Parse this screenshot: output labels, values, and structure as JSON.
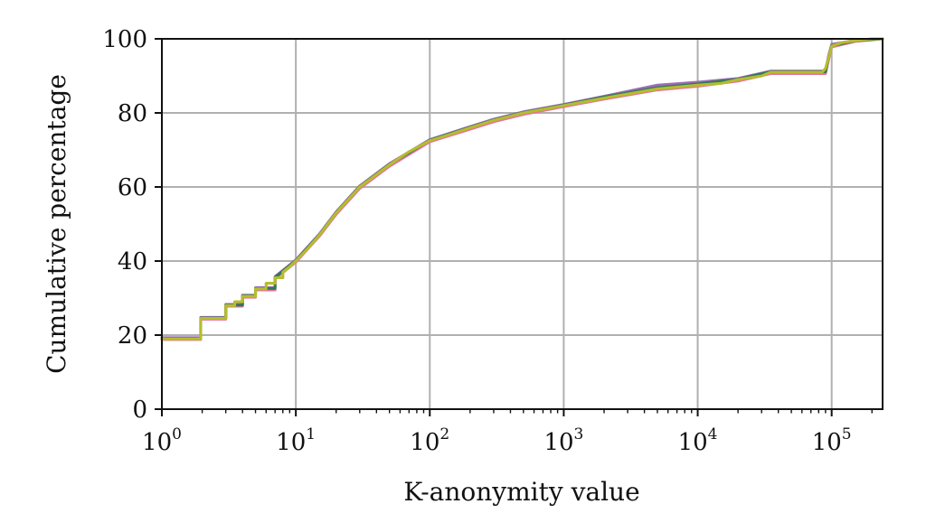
{
  "chart_data": {
    "type": "line",
    "title": "",
    "xlabel": "K-anonymity value",
    "ylabel": "Cumulative percentage",
    "x_scale": "log",
    "xlim": [
      1,
      240000
    ],
    "ylim": [
      0,
      100
    ],
    "grid": true,
    "x_ticks": [
      {
        "value": 1,
        "base": "10",
        "exp": "0"
      },
      {
        "value": 10,
        "base": "10",
        "exp": "1"
      },
      {
        "value": 100,
        "base": "10",
        "exp": "2"
      },
      {
        "value": 1000,
        "base": "10",
        "exp": "3"
      },
      {
        "value": 10000,
        "base": "10",
        "exp": "4"
      },
      {
        "value": 100000,
        "base": "10",
        "exp": "5"
      }
    ],
    "y_ticks": [
      "0",
      "20",
      "40",
      "60",
      "80",
      "100"
    ],
    "series": [
      {
        "color": "#b5bd2d",
        "x": [
          1,
          1.95,
          1.95,
          3,
          3,
          3.5,
          3.5,
          4,
          4,
          5,
          5,
          6,
          6,
          7,
          7,
          8,
          8,
          9,
          10,
          12,
          15,
          20,
          30,
          50,
          70,
          100,
          150,
          200,
          300,
          500,
          1000,
          2000,
          5000,
          10000,
          15000,
          20000,
          30000,
          35000,
          50000,
          85000,
          90000,
          95000,
          100000,
          120000,
          150000,
          200000,
          240000
        ],
        "y": [
          19,
          19,
          24.5,
          24.5,
          28,
          28,
          29,
          29,
          30.5,
          30.5,
          32.5,
          32.5,
          34,
          34,
          35.5,
          35.5,
          37,
          38.5,
          40,
          43,
          47,
          53,
          60,
          66,
          69.5,
          72.5,
          74.5,
          76,
          78,
          80,
          82,
          84,
          86.5,
          87.5,
          88,
          89,
          90,
          91,
          91,
          91,
          92,
          95,
          98,
          99,
          99.5,
          100,
          100
        ]
      },
      {
        "color": "#9c6bb3",
        "x": [
          1,
          1.95,
          1.95,
          3,
          3,
          4,
          4,
          5,
          5,
          7,
          7,
          10,
          15,
          20,
          30,
          50,
          100,
          200,
          300,
          500,
          1000,
          2000,
          5000,
          10000,
          20000,
          35000,
          50000,
          90000,
          95000,
          100000,
          150000,
          240000
        ],
        "y": [
          19.3,
          19.3,
          24.8,
          24.8,
          28.3,
          28.3,
          30.8,
          30.8,
          32.8,
          32.8,
          35.8,
          40.3,
          47.3,
          53.3,
          60.3,
          66.3,
          72.8,
          76.3,
          78.3,
          80.3,
          82.3,
          84.5,
          87.5,
          88.3,
          89.3,
          91.3,
          91.3,
          91.3,
          95.5,
          98.5,
          99.6,
          100
        ]
      },
      {
        "color": "#e6739f",
        "x": [
          1,
          1.95,
          1.95,
          3,
          3,
          4,
          4,
          5,
          5,
          7,
          7,
          10,
          15,
          20,
          30,
          50,
          100,
          200,
          300,
          500,
          1000,
          2000,
          5000,
          10000,
          20000,
          35000,
          50000,
          90000,
          95000,
          100000,
          150000,
          240000
        ],
        "y": [
          18.8,
          18.8,
          24.3,
          24.3,
          27.8,
          27.8,
          30.2,
          30.2,
          32.2,
          32.2,
          35.2,
          39.7,
          46.7,
          52.6,
          59.6,
          65.6,
          72.2,
          75.6,
          77.6,
          79.6,
          81.7,
          83.7,
          86.2,
          87.2,
          88.6,
          90.6,
          90.6,
          90.6,
          94.5,
          97.8,
          99.3,
          100
        ]
      },
      {
        "color": "#2d7a57",
        "x": [
          1,
          1.95,
          1.95,
          3,
          3,
          4,
          4,
          5,
          5,
          7,
          7,
          10,
          15,
          20,
          30,
          50,
          100,
          200,
          300,
          500,
          1000,
          2000,
          5000,
          10000,
          20000,
          35000,
          50000,
          90000,
          95000,
          100000,
          150000,
          240000
        ],
        "y": [
          19.1,
          19.1,
          24.6,
          24.6,
          28.1,
          28.1,
          30.6,
          30.6,
          32.6,
          32.6,
          35.6,
          40.1,
          47.1,
          53.1,
          60.1,
          66.1,
          72.6,
          76.1,
          78.1,
          80.1,
          82.1,
          84.3,
          86.8,
          87.8,
          89.1,
          91.1,
          91.1,
          91.1,
          95.1,
          98.1,
          99.5,
          100
        ]
      },
      {
        "color": "#b5bd2d",
        "x": [
          1,
          1.95,
          1.95,
          3,
          3,
          3.5,
          3.5,
          4,
          4,
          5,
          5,
          6,
          6,
          7,
          7,
          8,
          8,
          9,
          10,
          12,
          15,
          20,
          30,
          50,
          70,
          100,
          150,
          200,
          300,
          500,
          1000,
          2000,
          5000,
          10000,
          15000,
          20000,
          30000,
          35000,
          50000,
          85000,
          90000,
          95000,
          100000,
          120000,
          150000,
          200000,
          240000
        ],
        "y": [
          19,
          19,
          24.5,
          24.5,
          28,
          28,
          29,
          29,
          30.5,
          30.5,
          32.5,
          32.5,
          34,
          34,
          35.5,
          35.5,
          37,
          38.5,
          40,
          43,
          47,
          53,
          60,
          66,
          69.5,
          72.5,
          74.5,
          76,
          78,
          80,
          82,
          84,
          86.5,
          87.5,
          88,
          89,
          90,
          91,
          91,
          91,
          92,
          95,
          98,
          99,
          99.5,
          100,
          100
        ]
      }
    ]
  }
}
